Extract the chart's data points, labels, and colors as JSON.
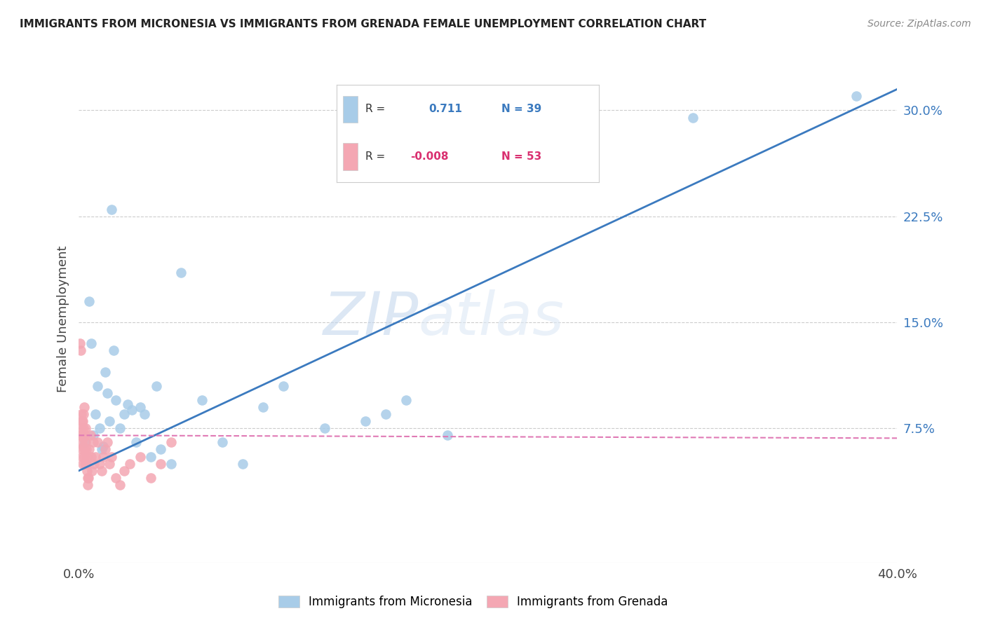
{
  "title": "IMMIGRANTS FROM MICRONESIA VS IMMIGRANTS FROM GRENADA FEMALE UNEMPLOYMENT CORRELATION CHART",
  "source": "Source: ZipAtlas.com",
  "ylabel": "Female Unemployment",
  "ytick_labels": [
    "7.5%",
    "15.0%",
    "22.5%",
    "30.0%"
  ],
  "ytick_values": [
    7.5,
    15.0,
    22.5,
    30.0
  ],
  "xlim": [
    0.0,
    40.0
  ],
  "ylim": [
    -2.0,
    32.5
  ],
  "legend_R_blue": "0.711",
  "legend_N_blue": "39",
  "legend_R_pink": "-0.008",
  "legend_N_pink": "53",
  "watermark_zip": "ZIP",
  "watermark_atlas": "atlas",
  "blue_color": "#a8cce8",
  "pink_color": "#f4a7b3",
  "blue_line_color": "#3b7abf",
  "pink_line_color": "#e07ab5",
  "blue_text_color": "#3b7abf",
  "pink_text_color": "#d93070",
  "micronesia_points": [
    [
      0.3,
      6.5
    ],
    [
      0.5,
      16.5
    ],
    [
      0.6,
      13.5
    ],
    [
      0.7,
      7.0
    ],
    [
      0.8,
      8.5
    ],
    [
      0.9,
      10.5
    ],
    [
      1.0,
      7.5
    ],
    [
      1.1,
      6.0
    ],
    [
      1.2,
      6.2
    ],
    [
      1.3,
      11.5
    ],
    [
      1.4,
      10.0
    ],
    [
      1.5,
      8.0
    ],
    [
      1.6,
      23.0
    ],
    [
      1.7,
      13.0
    ],
    [
      1.8,
      9.5
    ],
    [
      2.0,
      7.5
    ],
    [
      2.2,
      8.5
    ],
    [
      2.4,
      9.2
    ],
    [
      2.6,
      8.8
    ],
    [
      2.8,
      6.5
    ],
    [
      3.0,
      9.0
    ],
    [
      3.2,
      8.5
    ],
    [
      3.5,
      5.5
    ],
    [
      3.8,
      10.5
    ],
    [
      4.0,
      6.0
    ],
    [
      4.5,
      5.0
    ],
    [
      5.0,
      18.5
    ],
    [
      6.0,
      9.5
    ],
    [
      7.0,
      6.5
    ],
    [
      8.0,
      5.0
    ],
    [
      9.0,
      9.0
    ],
    [
      10.0,
      10.5
    ],
    [
      12.0,
      7.5
    ],
    [
      14.0,
      8.0
    ],
    [
      15.0,
      8.5
    ],
    [
      16.0,
      9.5
    ],
    [
      18.0,
      7.0
    ],
    [
      30.0,
      29.5
    ],
    [
      38.0,
      31.0
    ]
  ],
  "grenada_points": [
    [
      0.05,
      13.5
    ],
    [
      0.08,
      13.0
    ],
    [
      0.1,
      7.0
    ],
    [
      0.12,
      8.5
    ],
    [
      0.13,
      7.5
    ],
    [
      0.14,
      8.0
    ],
    [
      0.15,
      6.5
    ],
    [
      0.16,
      6.0
    ],
    [
      0.17,
      5.5
    ],
    [
      0.18,
      5.0
    ],
    [
      0.19,
      8.0
    ],
    [
      0.2,
      7.0
    ],
    [
      0.21,
      7.5
    ],
    [
      0.22,
      6.8
    ],
    [
      0.23,
      6.2
    ],
    [
      0.24,
      8.5
    ],
    [
      0.25,
      9.0
    ],
    [
      0.26,
      6.0
    ],
    [
      0.27,
      5.5
    ],
    [
      0.28,
      5.0
    ],
    [
      0.3,
      7.0
    ],
    [
      0.32,
      6.5
    ],
    [
      0.33,
      7.5
    ],
    [
      0.35,
      6.0
    ],
    [
      0.36,
      5.0
    ],
    [
      0.38,
      4.5
    ],
    [
      0.4,
      5.5
    ],
    [
      0.42,
      4.0
    ],
    [
      0.44,
      3.5
    ],
    [
      0.46,
      4.0
    ],
    [
      0.5,
      6.0
    ],
    [
      0.55,
      7.0
    ],
    [
      0.6,
      5.5
    ],
    [
      0.65,
      4.5
    ],
    [
      0.7,
      6.5
    ],
    [
      0.75,
      5.0
    ],
    [
      0.8,
      5.5
    ],
    [
      0.9,
      6.5
    ],
    [
      1.0,
      5.0
    ],
    [
      1.1,
      4.5
    ],
    [
      1.2,
      5.5
    ],
    [
      1.3,
      6.0
    ],
    [
      1.4,
      6.5
    ],
    [
      1.5,
      5.0
    ],
    [
      1.6,
      5.5
    ],
    [
      1.8,
      4.0
    ],
    [
      2.0,
      3.5
    ],
    [
      2.2,
      4.5
    ],
    [
      2.5,
      5.0
    ],
    [
      3.0,
      5.5
    ],
    [
      3.5,
      4.0
    ],
    [
      4.0,
      5.0
    ],
    [
      4.5,
      6.5
    ]
  ],
  "blue_line_x": [
    0.0,
    40.0
  ],
  "blue_line_y": [
    4.5,
    31.5
  ],
  "pink_line_x": [
    0.0,
    40.0
  ],
  "pink_line_y": [
    7.0,
    6.8
  ]
}
